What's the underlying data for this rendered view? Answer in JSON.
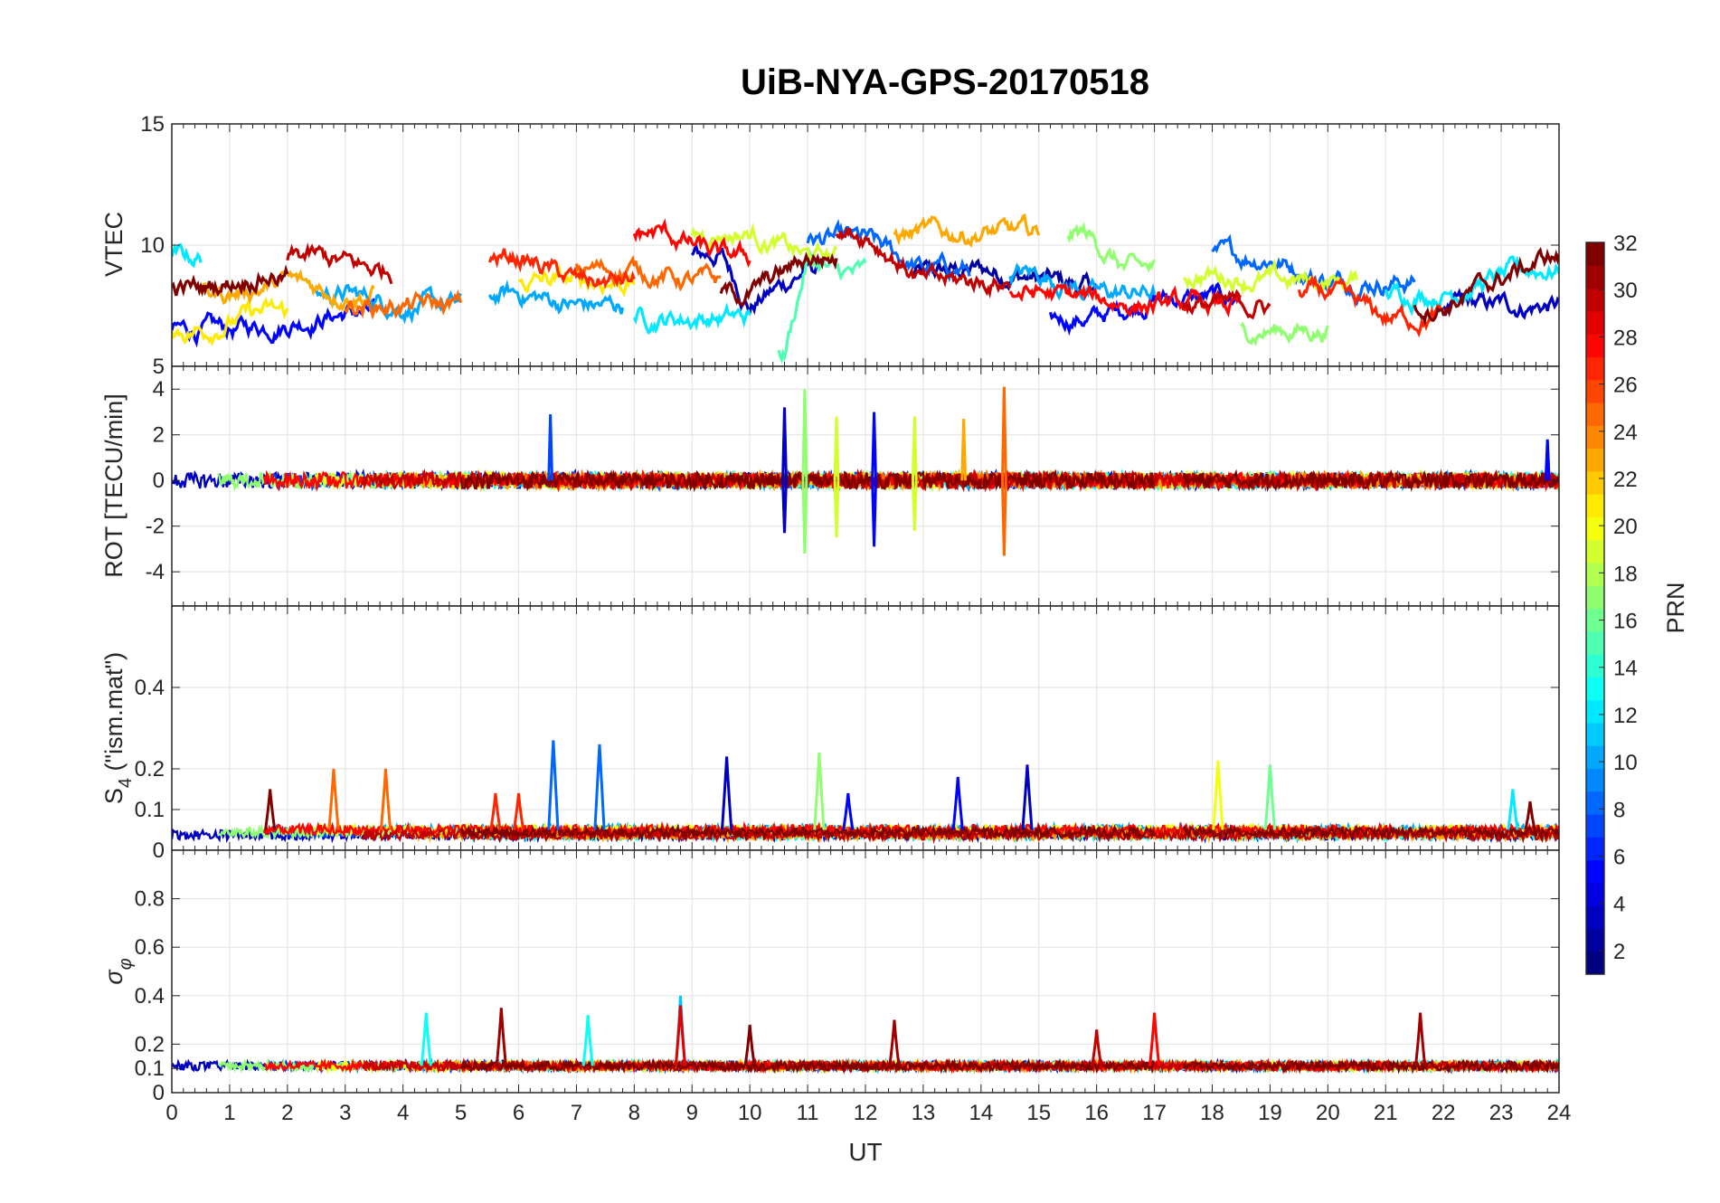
{
  "figure": {
    "title": "UiB-NYA-GPS-20170518",
    "xlabel": "UT",
    "colorbar": {
      "label": "PRN",
      "ticks": [
        "2",
        "4",
        "6",
        "8",
        "10",
        "12",
        "14",
        "16",
        "18",
        "20",
        "22",
        "24",
        "26",
        "28",
        "30",
        "32"
      ],
      "range": [
        1,
        32
      ],
      "colormap": "jet"
    }
  },
  "chart_data": [
    {
      "type": "line",
      "title": "UiB-NYA-GPS-20170518",
      "ylabel": "VTEC",
      "xlim": [
        0,
        24
      ],
      "ylim": [
        5,
        15
      ],
      "yticks": [
        "5",
        "10",
        "15"
      ],
      "grid": true,
      "series_note_prn_range": [
        1,
        32
      ],
      "series": [
        {
          "prn": 2,
          "segments": [
            [
              12.8,
              16.0
            ]
          ],
          "values_at": [
            [
              13,
              8.8
            ],
            [
              14,
              9.0
            ],
            [
              15,
              8.6
            ],
            [
              16,
              8.2
            ]
          ]
        },
        {
          "prn": 3,
          "segments": [
            [
              9.0,
              11.2
            ],
            [
              22.0,
              24
            ]
          ],
          "values_at": [
            [
              9.5,
              9.6
            ],
            [
              10,
              7.5
            ],
            [
              11,
              9.0
            ],
            [
              23,
              7.5
            ]
          ]
        },
        {
          "prn": 5,
          "segments": [
            [
              0,
              3.5
            ],
            [
              15.2,
              18.5
            ]
          ],
          "values_at": [
            [
              1,
              6.5
            ],
            [
              2,
              6.8
            ],
            [
              3,
              7.2
            ],
            [
              16,
              7.0
            ],
            [
              17,
              7.8
            ]
          ]
        },
        {
          "prn": 8,
          "segments": [
            [
              11.0,
              13.8
            ],
            [
              18.0,
              21.5
            ]
          ],
          "values_at": [
            [
              12,
              10.2
            ],
            [
              13,
              9.0
            ],
            [
              19,
              9.5
            ],
            [
              20,
              8.5
            ]
          ]
        },
        {
          "prn": 10,
          "segments": [
            [
              2.5,
              5.0
            ],
            [
              5.5,
              7.8
            ],
            [
              14.5,
              17.0
            ]
          ],
          "values_at": [
            [
              3,
              8.0
            ],
            [
              4,
              7.5
            ],
            [
              6,
              8.0
            ],
            [
              7,
              7.5
            ],
            [
              15,
              8.8
            ],
            [
              16,
              8.0
            ]
          ]
        },
        {
          "prn": 12,
          "segments": [
            [
              0,
              0.5
            ],
            [
              8.0,
              10.0
            ],
            [
              21.0,
              24
            ]
          ],
          "values_at": [
            [
              0.2,
              9.5
            ],
            [
              9,
              7.0
            ],
            [
              22,
              8.0
            ],
            [
              23.5,
              9.0
            ]
          ]
        },
        {
          "prn": 15,
          "segments": [
            [
              10.5,
              12.0
            ]
          ],
          "values_at": [
            [
              10.6,
              5.5
            ],
            [
              11,
              9.5
            ],
            [
              11.5,
              8.8
            ]
          ]
        },
        {
          "prn": 17,
          "segments": [
            [
              15.5,
              17.0
            ],
            [
              18.5,
              20.0
            ]
          ],
          "values_at": [
            [
              15.8,
              10.5
            ],
            [
              16.5,
              9.0
            ],
            [
              19,
              6.5
            ]
          ]
        },
        {
          "prn": 19,
          "segments": [
            [
              9.0,
              11.5
            ],
            [
              17.5,
              20.5
            ]
          ],
          "values_at": [
            [
              10,
              10.5
            ],
            [
              11,
              9.5
            ],
            [
              18,
              8.8
            ],
            [
              19,
              8.5
            ]
          ]
        },
        {
          "prn": 21,
          "segments": [
            [
              0,
              2.0
            ],
            [
              6.0,
              8.0
            ]
          ],
          "values_at": [
            [
              0.5,
              6.5
            ],
            [
              1.5,
              7.2
            ],
            [
              7,
              8.5
            ]
          ]
        },
        {
          "prn": 23,
          "segments": [
            [
              0.5,
              3.5
            ],
            [
              12.5,
              15.0
            ]
          ],
          "values_at": [
            [
              1,
              8.0
            ],
            [
              2,
              8.5
            ],
            [
              3,
              8.0
            ],
            [
              14,
              10.5
            ]
          ]
        },
        {
          "prn": 25,
          "segments": [
            [
              3.0,
              5.0
            ],
            [
              7.0,
              9.5
            ]
          ],
          "values_at": [
            [
              4,
              7.5
            ],
            [
              8,
              9.0
            ],
            [
              9,
              8.5
            ]
          ]
        },
        {
          "prn": 27,
          "segments": [
            [
              5.5,
              8.0
            ],
            [
              19.5,
              22.0
            ]
          ],
          "values_at": [
            [
              6,
              9.5
            ],
            [
              7,
              8.5
            ],
            [
              20,
              8.0
            ],
            [
              21,
              7.0
            ]
          ]
        },
        {
          "prn": 28,
          "segments": [
            [
              8.0,
              10.0
            ],
            [
              14.5,
              18.5
            ]
          ],
          "values_at": [
            [
              8.5,
              10.5
            ],
            [
              9.5,
              9.5
            ],
            [
              15,
              8.0
            ],
            [
              17,
              7.5
            ]
          ]
        },
        {
          "prn": 30,
          "segments": [
            [
              2.0,
              3.8
            ],
            [
              11.5,
              14.5
            ],
            [
              17.5,
              19.0
            ]
          ],
          "values_at": [
            [
              2.5,
              9.5
            ],
            [
              3.5,
              9.0
            ],
            [
              12,
              10.5
            ],
            [
              13,
              8.5
            ],
            [
              18,
              7.5
            ]
          ]
        },
        {
          "prn": 32,
          "segments": [
            [
              0,
              2.0
            ],
            [
              9.5,
              11.5
            ],
            [
              21.5,
              24
            ]
          ],
          "values_at": [
            [
              0.5,
              8.2
            ],
            [
              1.5,
              8.8
            ],
            [
              10,
              8.0
            ],
            [
              11,
              9.5
            ],
            [
              22,
              7.5
            ],
            [
              23.8,
              9.5
            ]
          ]
        }
      ]
    },
    {
      "type": "line",
      "ylabel": "ROT [TECU/min]",
      "xlim": [
        0,
        24
      ],
      "ylim": [
        -5.5,
        5
      ],
      "yticks": [
        "-4",
        "-2",
        "0",
        "2",
        "4"
      ],
      "grid": true,
      "baseline": 0,
      "noise_amplitude": 0.4,
      "spikes": [
        {
          "x": 6.55,
          "y": 2.9,
          "prn": 7
        },
        {
          "x": 10.6,
          "y": 3.2,
          "prn": 3
        },
        {
          "x": 10.6,
          "y": -2.3,
          "prn": 3
        },
        {
          "x": 10.95,
          "y": 4.0,
          "prn": 17
        },
        {
          "x": 10.95,
          "y": -3.2,
          "prn": 17
        },
        {
          "x": 11.5,
          "y": 2.8,
          "prn": 19
        },
        {
          "x": 11.5,
          "y": -2.5,
          "prn": 19
        },
        {
          "x": 12.15,
          "y": 3.0,
          "prn": 5
        },
        {
          "x": 12.15,
          "y": -2.9,
          "prn": 5
        },
        {
          "x": 12.85,
          "y": 2.8,
          "prn": 19
        },
        {
          "x": 12.85,
          "y": -2.2,
          "prn": 19
        },
        {
          "x": 13.7,
          "y": 2.7,
          "prn": 23
        },
        {
          "x": 14.4,
          "y": 4.1,
          "prn": 25
        },
        {
          "x": 14.4,
          "y": -3.3,
          "prn": 25
        },
        {
          "x": 23.8,
          "y": 1.8,
          "prn": 5
        }
      ]
    },
    {
      "type": "line",
      "ylabel": "S_4 (\"ism.mat\")",
      "xlim": [
        0,
        24
      ],
      "ylim": [
        0,
        0.6
      ],
      "yticks": [
        "0",
        "0.1",
        "0.2",
        "0.4"
      ],
      "grid": true,
      "baseline": 0.05,
      "peaks": [
        {
          "x": 1.7,
          "y": 0.15,
          "prn": 32
        },
        {
          "x": 2.8,
          "y": 0.2,
          "prn": 25
        },
        {
          "x": 3.7,
          "y": 0.2,
          "prn": 25
        },
        {
          "x": 5.6,
          "y": 0.14,
          "prn": 27
        },
        {
          "x": 6.0,
          "y": 0.14,
          "prn": 27
        },
        {
          "x": 6.6,
          "y": 0.27,
          "prn": 8
        },
        {
          "x": 7.4,
          "y": 0.26,
          "prn": 8
        },
        {
          "x": 9.6,
          "y": 0.23,
          "prn": 3
        },
        {
          "x": 11.2,
          "y": 0.24,
          "prn": 17
        },
        {
          "x": 11.7,
          "y": 0.14,
          "prn": 5
        },
        {
          "x": 13.6,
          "y": 0.18,
          "prn": 5
        },
        {
          "x": 14.8,
          "y": 0.21,
          "prn": 3
        },
        {
          "x": 18.1,
          "y": 0.22,
          "prn": 20
        },
        {
          "x": 19.0,
          "y": 0.21,
          "prn": 16
        },
        {
          "x": 23.2,
          "y": 0.15,
          "prn": 12
        },
        {
          "x": 23.5,
          "y": 0.12,
          "prn": 32
        }
      ]
    },
    {
      "type": "line",
      "ylabel": "σ_φ",
      "xlim": [
        0,
        24
      ],
      "ylim": [
        0,
        1
      ],
      "yticks": [
        "0",
        "0.1",
        "0.2",
        "0.4",
        "0.6",
        "0.8"
      ],
      "grid": true,
      "xticks": [
        "0",
        "1",
        "2",
        "3",
        "4",
        "5",
        "6",
        "7",
        "8",
        "9",
        "10",
        "11",
        "12",
        "13",
        "14",
        "15",
        "16",
        "17",
        "18",
        "19",
        "20",
        "21",
        "22",
        "23",
        "24"
      ],
      "xlabel": "UT",
      "baseline": 0.11,
      "peaks": [
        {
          "x": 4.4,
          "y": 0.33,
          "prn": 13
        },
        {
          "x": 5.7,
          "y": 0.35,
          "prn": 31
        },
        {
          "x": 7.2,
          "y": 0.32,
          "prn": 13
        },
        {
          "x": 8.8,
          "y": 0.4,
          "prn": 11
        },
        {
          "x": 8.8,
          "y": 0.36,
          "prn": 29
        },
        {
          "x": 12.5,
          "y": 0.3,
          "prn": 31
        },
        {
          "x": 16.0,
          "y": 0.26,
          "prn": 30
        },
        {
          "x": 17.0,
          "y": 0.33,
          "prn": 28
        },
        {
          "x": 21.6,
          "y": 0.33,
          "prn": 31
        },
        {
          "x": 10.0,
          "y": 0.28,
          "prn": 32
        }
      ]
    }
  ]
}
